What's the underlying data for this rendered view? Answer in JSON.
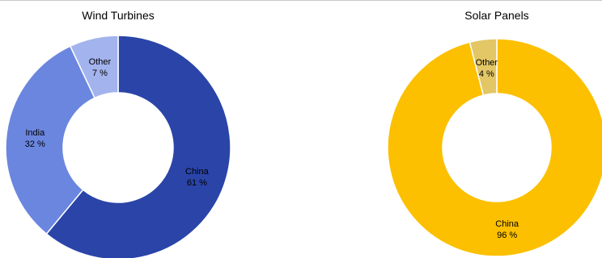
{
  "colors": {
    "background": "#ffffff",
    "separator": "#ffffff",
    "top_rule": "#c8c8c8"
  },
  "chart_data": [
    {
      "type": "pie",
      "style": "donut",
      "title": "Wind Turbines",
      "unit": "%",
      "slices": [
        {
          "label": "China",
          "value": 61,
          "value_text": "61 %",
          "color": "#2a44a8"
        },
        {
          "label": "India",
          "value": 32,
          "value_text": "32 %",
          "color": "#6b86df"
        },
        {
          "label": "Other",
          "value": 7,
          "value_text": "7 %",
          "color": "#a3b3ed"
        }
      ]
    },
    {
      "type": "pie",
      "style": "donut",
      "title": "Solar Panels",
      "unit": "%",
      "slices": [
        {
          "label": "China",
          "value": 96,
          "value_text": "96 %",
          "color": "#fcc000"
        },
        {
          "label": "Other",
          "value": 4,
          "value_text": "4 %",
          "color": "#e3c666"
        }
      ]
    }
  ]
}
